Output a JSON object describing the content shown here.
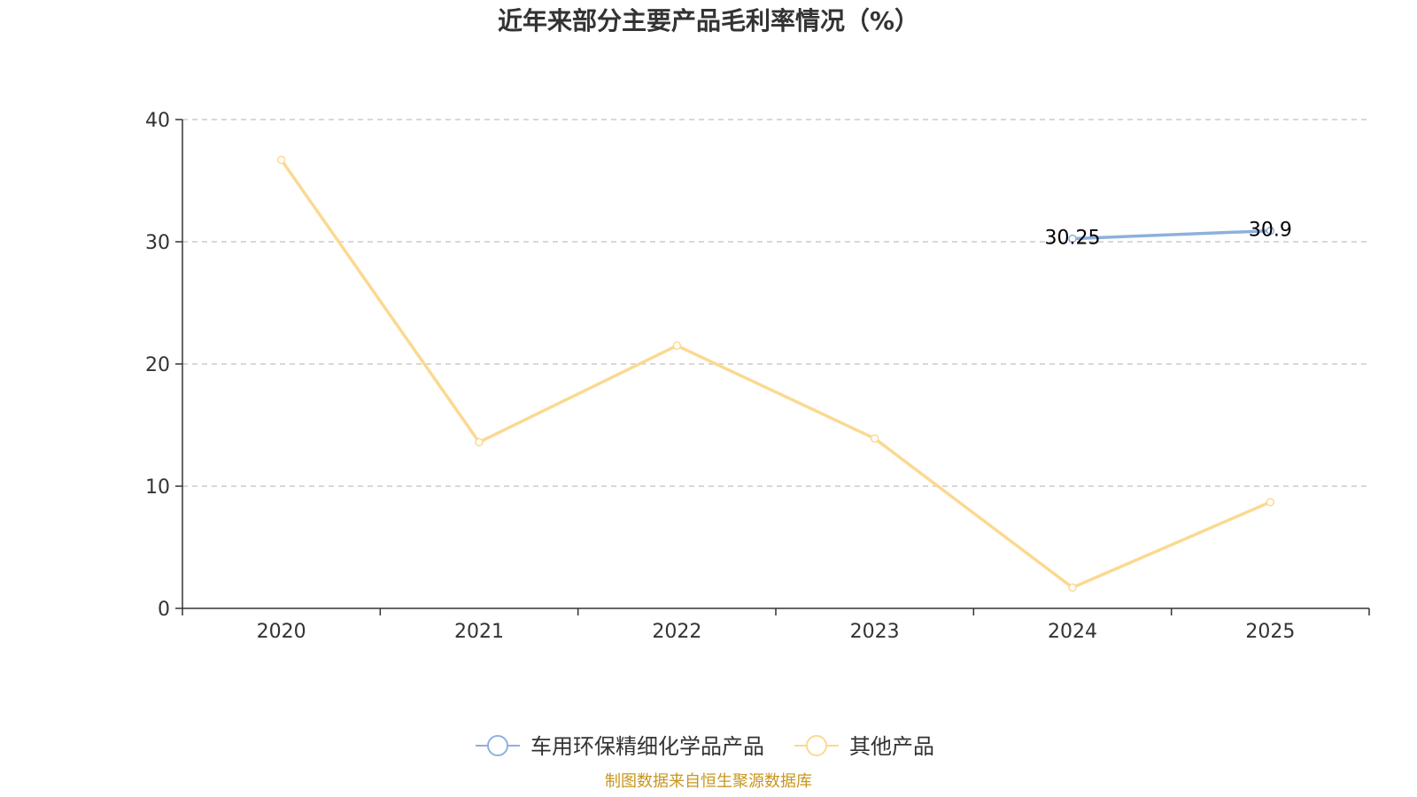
{
  "chart_data": {
    "type": "line",
    "title": "近年来部分主要产品毛利率情况（%）",
    "categories": [
      "2020",
      "2021",
      "2022",
      "2023",
      "2024",
      "2025"
    ],
    "ylim": [
      0,
      40
    ],
    "yticks": [
      "0",
      "10",
      "20",
      "30",
      "40"
    ],
    "grid": true,
    "legend_position": "bottom",
    "series": [
      {
        "name": "车用环保精细化学品产品",
        "color": "#8eb0dd",
        "values": [
          null,
          null,
          null,
          null,
          30.25,
          30.9
        ],
        "labels": [
          null,
          null,
          null,
          null,
          "30.25",
          "30.9"
        ]
      },
      {
        "name": "其他产品",
        "color": "#fbd991",
        "values": [
          36.7,
          13.6,
          21.5,
          13.9,
          1.7,
          8.7
        ],
        "labels": [
          null,
          null,
          null,
          null,
          null,
          null
        ]
      }
    ]
  },
  "footer": {
    "source": "制图数据来自恒生聚源数据库",
    "source_color": "#c8961e"
  }
}
